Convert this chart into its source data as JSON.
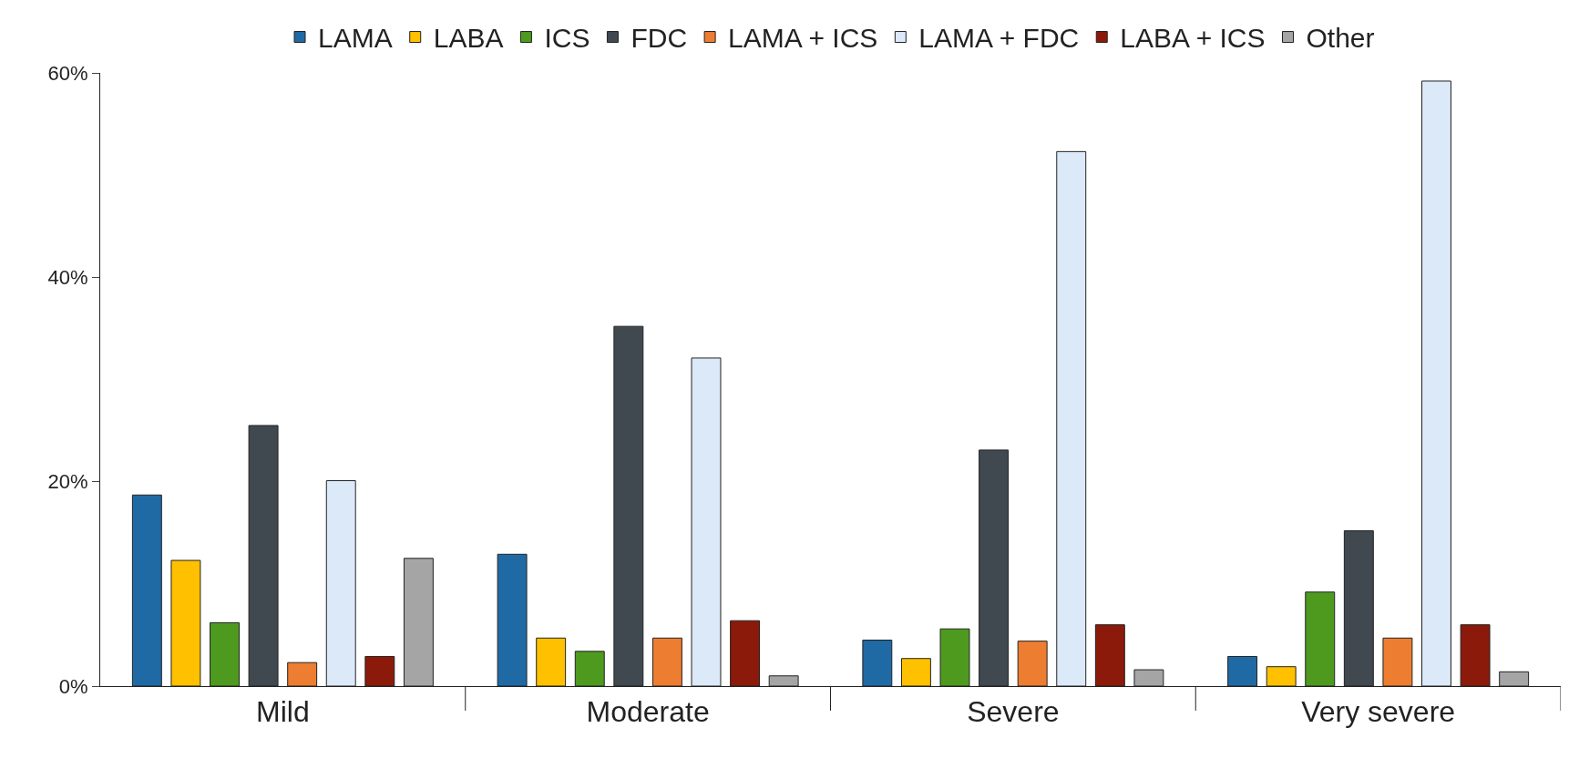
{
  "chart_data": {
    "type": "bar",
    "categories": [
      "Mild",
      "Moderate",
      "Severe",
      "Very severe"
    ],
    "series": [
      {
        "name": "LAMA",
        "color": "#1f6aa5",
        "values": [
          18.7,
          12.9,
          4.5,
          2.9
        ]
      },
      {
        "name": "LABA",
        "color": "#ffc000",
        "values": [
          12.3,
          4.7,
          2.7,
          1.9
        ]
      },
      {
        "name": "ICS",
        "color": "#4e9a1f",
        "values": [
          6.2,
          3.4,
          5.6,
          9.2
        ]
      },
      {
        "name": "FDC",
        "color": "#404850",
        "values": [
          25.5,
          35.2,
          23.1,
          15.2
        ]
      },
      {
        "name": "LAMA + ICS",
        "color": "#ed7d31",
        "values": [
          2.3,
          4.7,
          4.4,
          4.7
        ]
      },
      {
        "name": "LAMA + FDC",
        "color": "#dbe9f8",
        "values": [
          20.1,
          32.1,
          52.3,
          59.2
        ]
      },
      {
        "name": "LABA + ICS",
        "color": "#8b1a0a",
        "values": [
          2.9,
          6.4,
          6.0,
          6.0
        ]
      },
      {
        "name": "Other",
        "color": "#a5a5a5",
        "values": [
          12.5,
          1.0,
          1.6,
          1.4
        ]
      }
    ],
    "ylim": [
      0,
      60
    ],
    "yticks": [
      {
        "value": 0,
        "label": "0%"
      },
      {
        "value": 20,
        "label": "20%"
      },
      {
        "value": 40,
        "label": "40%"
      },
      {
        "value": 60,
        "label": "60%"
      }
    ],
    "grid": false,
    "legend": "top"
  }
}
